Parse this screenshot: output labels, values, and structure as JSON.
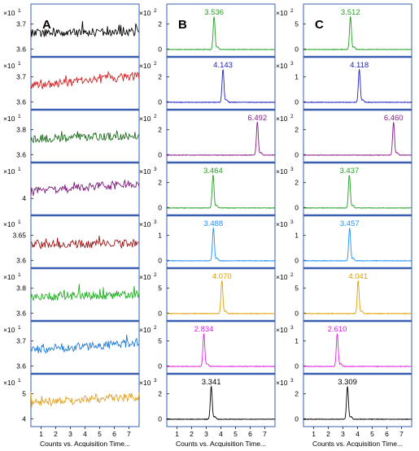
{
  "figure": {
    "xaxis_caption": "Counts vs. Acquisition Time...",
    "x_ticks": [
      "1",
      "2",
      "3",
      "4",
      "5",
      "6",
      "7"
    ],
    "columns": [
      {
        "label": "A",
        "rows": [
          {
            "exp": "×10",
            "sup": "1",
            "yticks": [
              "3.7",
              "3.6"
            ],
            "color": "#000000",
            "kind": "noise",
            "trend": 0.05
          },
          {
            "exp": "×10",
            "sup": "1",
            "yticks": [
              "3.7",
              "3.6"
            ],
            "color": "#d42020",
            "kind": "noise",
            "trend": 0.55
          },
          {
            "exp": "×10",
            "sup": "1",
            "yticks": [
              "3.8",
              "3.6"
            ],
            "color": "#1f6b1f",
            "kind": "noise",
            "trend": 0.15
          },
          {
            "exp": "×10",
            "sup": "1",
            "yticks": [
              "4"
            ],
            "color": "#7a1a7a",
            "kind": "noise",
            "trend": 0.45
          },
          {
            "exp": "×10",
            "sup": "1",
            "yticks": [
              "3.65",
              "3.6"
            ],
            "color": "#a01818",
            "kind": "noise",
            "trend": 0.05
          },
          {
            "exp": "×10",
            "sup": "1",
            "yticks": [
              "3.8",
              "3.6"
            ],
            "color": "#22b022",
            "kind": "noise",
            "trend": 0.15
          },
          {
            "exp": "×10",
            "sup": "1",
            "yticks": [
              "3.7",
              "3.6"
            ],
            "color": "#1e7ad8",
            "kind": "noise",
            "trend": 0.4
          },
          {
            "exp": "×10",
            "sup": "1",
            "yticks": [
              "5",
              "4"
            ],
            "color": "#e0a020",
            "kind": "noise",
            "trend": 0.35
          }
        ]
      },
      {
        "label": "B",
        "rows": [
          {
            "exp": "×10",
            "sup": "2",
            "yticks": [
              "2",
              "0"
            ],
            "color": "#22a022",
            "kind": "peak",
            "peak": 3.536,
            "label": "3.536"
          },
          {
            "exp": "×10",
            "sup": "2",
            "yticks": [
              "2",
              "0"
            ],
            "color": "#2020c0",
            "kind": "peak",
            "peak": 4.143,
            "label": "4.143"
          },
          {
            "exp": "×10",
            "sup": "2",
            "yticks": [
              "2",
              "0"
            ],
            "color": "#8a1a8a",
            "kind": "peak",
            "peak": 6.492,
            "label": "6.492"
          },
          {
            "exp": "×10",
            "sup": "3",
            "yticks": [
              "2",
              "0"
            ],
            "color": "#22a022",
            "kind": "peak",
            "peak": 3.464,
            "label": "3.464"
          },
          {
            "exp": "×10",
            "sup": "3",
            "yticks": [
              "1",
              "0"
            ],
            "color": "#1e90ff",
            "kind": "peak",
            "peak": 3.488,
            "label": "3.488"
          },
          {
            "exp": "×10",
            "sup": "2",
            "yticks": [
              "5",
              "0"
            ],
            "color": "#e0a000",
            "kind": "peak",
            "peak": 4.07,
            "label": "4.070"
          },
          {
            "exp": "×10",
            "sup": "2",
            "yticks": [
              "5",
              "0"
            ],
            "color": "#e020e0",
            "kind": "peak",
            "peak": 2.834,
            "label": "2.834"
          },
          {
            "exp": "×10",
            "sup": "3",
            "yticks": [
              "2",
              "0"
            ],
            "color": "#000000",
            "kind": "peak",
            "peak": 3.341,
            "label": "3.341"
          }
        ]
      },
      {
        "label": "C",
        "rows": [
          {
            "exp": "×10",
            "sup": "2",
            "yticks": [
              "5",
              "0"
            ],
            "color": "#22a022",
            "kind": "peak",
            "peak": 3.512,
            "label": "3.512"
          },
          {
            "exp": "×10",
            "sup": "3",
            "yticks": [
              "1",
              "0"
            ],
            "color": "#2020c0",
            "kind": "peak",
            "peak": 4.118,
            "label": "4.118"
          },
          {
            "exp": "×10",
            "sup": "2",
            "yticks": [
              "2",
              "0"
            ],
            "color": "#8a1a8a",
            "kind": "peak",
            "peak": 6.46,
            "label": "6.460"
          },
          {
            "exp": "×10",
            "sup": "3",
            "yticks": [
              "2",
              "0"
            ],
            "color": "#22a022",
            "kind": "peak",
            "peak": 3.437,
            "label": "3.437"
          },
          {
            "exp": "×10",
            "sup": "3",
            "yticks": [
              "1",
              "0"
            ],
            "color": "#1e90ff",
            "kind": "peak",
            "peak": 3.457,
            "label": "3.457"
          },
          {
            "exp": "×10",
            "sup": "2",
            "yticks": [
              "5",
              "0"
            ],
            "color": "#e0a000",
            "kind": "peak",
            "peak": 4.041,
            "label": "4.041"
          },
          {
            "exp": "×10",
            "sup": "3",
            "yticks": [
              "1",
              "0"
            ],
            "color": "#e020e0",
            "kind": "peak",
            "peak": 2.61,
            "label": "2.610"
          },
          {
            "exp": "×10",
            "sup": "3",
            "yticks": [
              "2",
              "0"
            ],
            "color": "#000000",
            "kind": "peak",
            "peak": 3.309,
            "label": "3.309"
          }
        ]
      }
    ]
  },
  "chart_data": {
    "type": "line",
    "x_range": [
      0.3,
      7.7
    ],
    "xlabel": "Counts vs. Acquisition Time...",
    "panels": [
      "A",
      "B",
      "C"
    ],
    "peaks_B": [
      3.536,
      4.143,
      6.492,
      3.464,
      3.488,
      4.07,
      2.834,
      3.341
    ],
    "peaks_C": [
      3.512,
      4.118,
      6.46,
      3.437,
      3.457,
      4.041,
      2.61,
      3.309
    ]
  }
}
